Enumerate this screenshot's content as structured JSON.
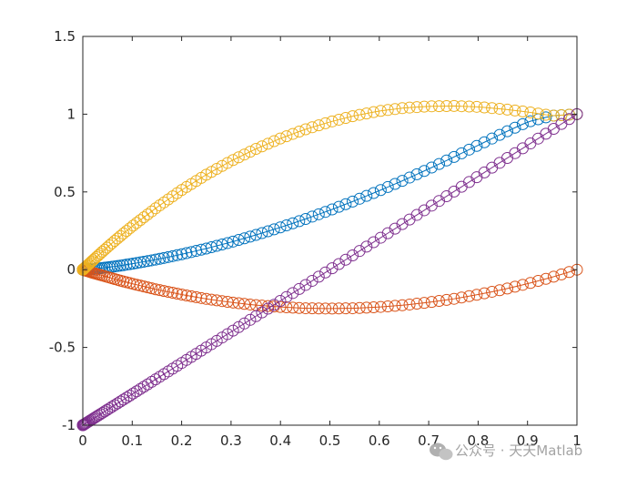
{
  "chart_data": {
    "type": "scatter",
    "title": "",
    "xlabel": "",
    "ylabel": "",
    "xlim": [
      0,
      1
    ],
    "ylim": [
      -1,
      1.5
    ],
    "grid": false,
    "legend": "none",
    "x_ticks": [
      0,
      0.1,
      0.2,
      0.3,
      0.4,
      0.5,
      0.6,
      0.7,
      0.8,
      0.9,
      1
    ],
    "x_tick_labels": [
      "0",
      "0.1",
      "0.2",
      "0.3",
      "0.4",
      "0.5",
      "0.6",
      "0.7",
      "0.8",
      "0.9",
      "1"
    ],
    "y_ticks": [
      -1,
      -0.5,
      0,
      0.5,
      1,
      1.5
    ],
    "y_tick_labels": [
      "-1",
      "-0.5",
      "0",
      "0.5",
      "1",
      "1.5"
    ],
    "marker": "circle",
    "series": [
      {
        "color": "#0072BD",
        "x": [
          0.0,
          0.02,
          0.04,
          0.06,
          0.08,
          0.1,
          0.15,
          0.2,
          0.25,
          0.3,
          0.35,
          0.4,
          0.45,
          0.5,
          0.55,
          0.6,
          0.65,
          0.7,
          0.75,
          0.8,
          0.85,
          0.9,
          0.95,
          1.0
        ],
        "y": [
          0.0,
          0.004,
          0.011,
          0.019,
          0.028,
          0.038,
          0.066,
          0.099,
          0.136,
          0.177,
          0.223,
          0.272,
          0.325,
          0.382,
          0.443,
          0.508,
          0.576,
          0.648,
          0.723,
          0.8,
          0.877,
          0.95,
          0.99,
          1.0
        ]
      },
      {
        "color": "#D95319",
        "x": [
          0.0,
          0.02,
          0.04,
          0.06,
          0.08,
          0.1,
          0.15,
          0.2,
          0.25,
          0.3,
          0.35,
          0.4,
          0.45,
          0.5,
          0.55,
          0.6,
          0.65,
          0.7,
          0.75,
          0.8,
          0.85,
          0.9,
          0.95,
          1.0
        ],
        "y": [
          0.0,
          -0.02,
          -0.038,
          -0.056,
          -0.074,
          -0.09,
          -0.128,
          -0.16,
          -0.188,
          -0.21,
          -0.228,
          -0.24,
          -0.248,
          -0.25,
          -0.248,
          -0.24,
          -0.228,
          -0.21,
          -0.188,
          -0.16,
          -0.128,
          -0.09,
          -0.048,
          0.0
        ]
      },
      {
        "color": "#EDB120",
        "x": [
          0.0,
          0.02,
          0.04,
          0.06,
          0.08,
          0.1,
          0.15,
          0.2,
          0.25,
          0.3,
          0.35,
          0.4,
          0.45,
          0.5,
          0.55,
          0.6,
          0.65,
          0.7,
          0.75,
          0.8,
          0.85,
          0.9,
          0.95,
          1.0
        ],
        "y": [
          0.0,
          0.059,
          0.117,
          0.173,
          0.227,
          0.279,
          0.401,
          0.512,
          0.611,
          0.699,
          0.776,
          0.844,
          0.902,
          0.95,
          0.99,
          1.02,
          1.04,
          1.05,
          1.053,
          1.047,
          1.033,
          1.014,
          0.99,
          1.0
        ]
      },
      {
        "color": "#7E2F8E",
        "x": [
          0.0,
          0.02,
          0.04,
          0.06,
          0.08,
          0.1,
          0.15,
          0.2,
          0.25,
          0.3,
          0.35,
          0.4,
          0.45,
          0.5,
          0.55,
          0.6,
          0.65,
          0.7,
          0.75,
          0.8,
          0.85,
          0.9,
          0.95,
          1.0
        ],
        "y": [
          -1.0,
          -0.96,
          -0.92,
          -0.88,
          -0.84,
          -0.8,
          -0.7,
          -0.6,
          -0.5,
          -0.4,
          -0.3,
          -0.2,
          -0.1,
          0.0,
          0.1,
          0.2,
          0.3,
          0.4,
          0.5,
          0.6,
          0.7,
          0.8,
          0.9,
          1.0
        ]
      }
    ]
  },
  "watermark": {
    "text": "公众号 · 天天Matlab",
    "icon": "wechat-icon"
  }
}
